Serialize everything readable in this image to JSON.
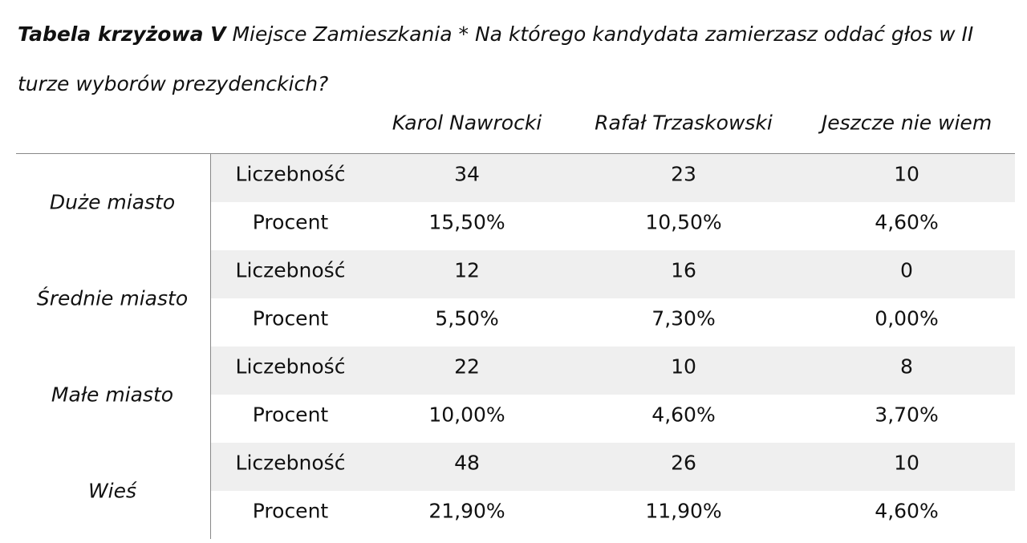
{
  "caption": {
    "label": "Tabela krzyżowa V",
    "text": "Miejsce Zamieszkania * Na którego kandydata zamierzasz oddać głos w II turze wyborów prezydenckich?"
  },
  "table": {
    "columns": [
      "Karol Nawrocki",
      "Rafał Trzaskowski",
      "Jeszcze nie wiem"
    ],
    "groups": [
      {
        "label": "Duże miasto",
        "rows": [
          {
            "label": "Liczebność",
            "values": [
              "34",
              "23",
              "10"
            ]
          },
          {
            "label": "Procent",
            "values": [
              "15,50%",
              "10,50%",
              "4,60%"
            ]
          }
        ]
      },
      {
        "label": "Średnie miasto",
        "rows": [
          {
            "label": "Liczebność",
            "values": [
              "12",
              "16",
              "0"
            ]
          },
          {
            "label": "Procent",
            "values": [
              "5,50%",
              "7,30%",
              "0,00%"
            ]
          }
        ]
      },
      {
        "label": "Małe miasto",
        "rows": [
          {
            "label": "Liczebność",
            "values": [
              "22",
              "10",
              "8"
            ]
          },
          {
            "label": "Procent",
            "values": [
              "10,00%",
              "4,60%",
              "3,70%"
            ]
          }
        ]
      },
      {
        "label": "Wieś",
        "rows": [
          {
            "label": "Liczebność",
            "values": [
              "48",
              "26",
              "10"
            ]
          },
          {
            "label": "Procent",
            "values": [
              "21,90%",
              "11,90%",
              "4,60%"
            ]
          }
        ]
      }
    ]
  }
}
